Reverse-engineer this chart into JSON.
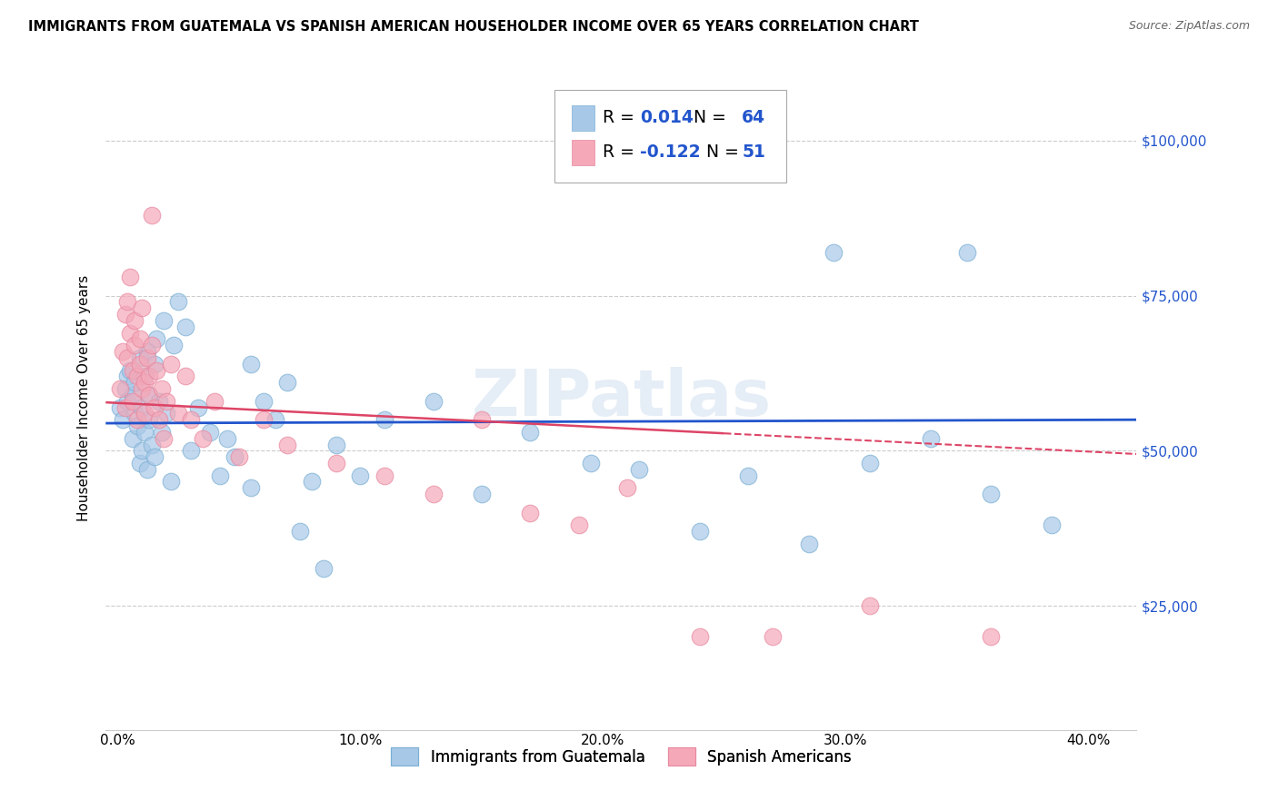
{
  "title": "IMMIGRANTS FROM GUATEMALA VS SPANISH AMERICAN HOUSEHOLDER INCOME OVER 65 YEARS CORRELATION CHART",
  "source": "Source: ZipAtlas.com",
  "xlabel_ticks": [
    "0.0%",
    "10.0%",
    "20.0%",
    "30.0%",
    "40.0%"
  ],
  "xlabel_tick_vals": [
    0.0,
    0.1,
    0.2,
    0.3,
    0.4
  ],
  "ylabel": "Householder Income Over 65 years",
  "ylabel_ticks": [
    "$25,000",
    "$50,000",
    "$75,000",
    "$100,000"
  ],
  "ylabel_tick_vals": [
    25000,
    50000,
    75000,
    100000
  ],
  "xlim": [
    -0.005,
    0.42
  ],
  "ylim": [
    5000,
    112000
  ],
  "blue_R": "0.014",
  "blue_N": "64",
  "pink_R": "-0.122",
  "pink_N": "51",
  "blue_color": "#a8c8e8",
  "pink_color": "#f4a8b8",
  "blue_edge_color": "#7aafd4",
  "pink_edge_color": "#e888a0",
  "blue_line_color": "#2255cc",
  "pink_line_color": "#dd4466",
  "watermark": "ZIPatlas",
  "legend_R_color": "#2255cc",
  "blue_scatter_x": [
    0.001,
    0.002,
    0.003,
    0.004,
    0.004,
    0.005,
    0.006,
    0.006,
    0.007,
    0.007,
    0.008,
    0.009,
    0.009,
    0.01,
    0.01,
    0.011,
    0.011,
    0.012,
    0.012,
    0.013,
    0.013,
    0.014,
    0.015,
    0.015,
    0.016,
    0.017,
    0.018,
    0.019,
    0.02,
    0.022,
    0.023,
    0.025,
    0.028,
    0.03,
    0.033,
    0.038,
    0.042,
    0.048,
    0.055,
    0.06,
    0.065,
    0.07,
    0.08,
    0.09,
    0.1,
    0.11,
    0.13,
    0.15,
    0.17,
    0.195,
    0.215,
    0.24,
    0.26,
    0.285,
    0.31,
    0.335,
    0.36,
    0.385,
    0.295,
    0.35,
    0.045,
    0.055,
    0.075,
    0.085
  ],
  "blue_scatter_y": [
    57000,
    55000,
    60000,
    62000,
    58000,
    63000,
    52000,
    59000,
    56000,
    61000,
    54000,
    48000,
    65000,
    50000,
    57000,
    53000,
    62000,
    47000,
    66000,
    55000,
    59000,
    51000,
    64000,
    49000,
    68000,
    58000,
    53000,
    71000,
    56000,
    45000,
    67000,
    74000,
    70000,
    50000,
    57000,
    53000,
    46000,
    49000,
    64000,
    58000,
    55000,
    61000,
    45000,
    51000,
    46000,
    55000,
    58000,
    43000,
    53000,
    48000,
    47000,
    37000,
    46000,
    35000,
    48000,
    52000,
    43000,
    38000,
    82000,
    82000,
    52000,
    44000,
    37000,
    31000
  ],
  "pink_scatter_x": [
    0.001,
    0.002,
    0.003,
    0.003,
    0.004,
    0.004,
    0.005,
    0.005,
    0.006,
    0.006,
    0.007,
    0.007,
    0.008,
    0.008,
    0.009,
    0.009,
    0.01,
    0.01,
    0.011,
    0.011,
    0.012,
    0.013,
    0.013,
    0.014,
    0.015,
    0.016,
    0.017,
    0.018,
    0.019,
    0.02,
    0.022,
    0.025,
    0.028,
    0.03,
    0.035,
    0.04,
    0.05,
    0.06,
    0.07,
    0.09,
    0.11,
    0.13,
    0.15,
    0.17,
    0.19,
    0.21,
    0.24,
    0.27,
    0.31,
    0.36,
    0.014
  ],
  "pink_scatter_y": [
    60000,
    66000,
    72000,
    57000,
    65000,
    74000,
    69000,
    78000,
    63000,
    58000,
    71000,
    67000,
    62000,
    55000,
    68000,
    64000,
    60000,
    73000,
    56000,
    61000,
    65000,
    59000,
    62000,
    67000,
    57000,
    63000,
    55000,
    60000,
    52000,
    58000,
    64000,
    56000,
    62000,
    55000,
    52000,
    58000,
    49000,
    55000,
    51000,
    48000,
    46000,
    43000,
    55000,
    40000,
    38000,
    44000,
    20000,
    20000,
    25000,
    20000,
    88000
  ],
  "pink_line_solid_end": 0.25
}
